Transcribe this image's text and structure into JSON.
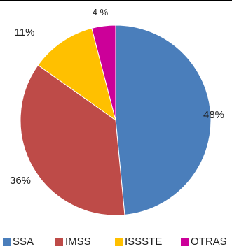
{
  "chart_data": {
    "type": "pie",
    "title": "",
    "slices": [
      {
        "label": "SSA",
        "value": 48,
        "value_label": "48%",
        "color": "#4a7ebb"
      },
      {
        "label": "IMSS",
        "value": 36,
        "value_label": "36%",
        "color": "#be4b48"
      },
      {
        "label": "ISSSTE",
        "value": 11,
        "value_label": "11%",
        "color": "#ffc000"
      },
      {
        "label": "OTRAS",
        "value": 4,
        "value_label": "4 %",
        "color": "#cc0099"
      }
    ],
    "legend_position": "bottom"
  }
}
